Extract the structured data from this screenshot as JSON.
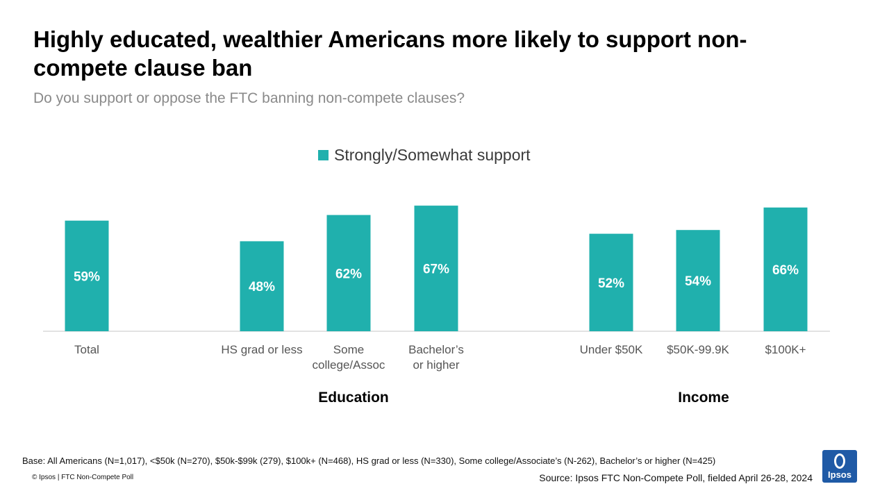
{
  "title": "Highly educated, wealthier Americans more likely to support non-compete clause ban",
  "subtitle": "Do you support or oppose the FTC banning non-compete clauses?",
  "colors": {
    "bar": "#20b0ad",
    "axis": "#d0d0d0",
    "tick_label": "#555555",
    "logo": "#1f5aa6"
  },
  "chart_data": {
    "type": "bar",
    "categories": [
      "Total",
      "HS grad or less",
      "Some college/Assoc",
      "Bachelor’s or higher",
      "Under $50K",
      "$50K-99.9K",
      "$100K+"
    ],
    "groups": [
      {
        "label": "",
        "categories": [
          "Total"
        ]
      },
      {
        "label": "Education",
        "categories": [
          "HS grad or less",
          "Some college/Assoc",
          "Bachelor’s or higher"
        ]
      },
      {
        "label": "Income",
        "categories": [
          "Under $50K",
          "$50K-99.9K",
          "$100K+"
        ]
      }
    ],
    "series": [
      {
        "name": "Strongly/Somewhat support",
        "values": [
          59,
          48,
          62,
          67,
          52,
          54,
          66
        ]
      }
    ],
    "data_labels": [
      "59%",
      "48%",
      "62%",
      "67%",
      "52%",
      "54%",
      "66%"
    ],
    "ylim": [
      0,
      100
    ],
    "grid": false,
    "legend_position": "top-center"
  },
  "footer": {
    "base": "Base: All Americans (N=1,017), <$50k (N=270), $50k-$99k (279), $100k+ (N=468), HS grad or less (N=330), Some college/Associate’s (N-262), Bachelor’s or higher (N=425)",
    "copyright": "© Ipsos | FTC Non-Compete Poll",
    "source": "Source: Ipsos FTC Non-Compete Poll, fielded April 26-28, 2024"
  },
  "logo": {
    "text": "Ipsos"
  }
}
